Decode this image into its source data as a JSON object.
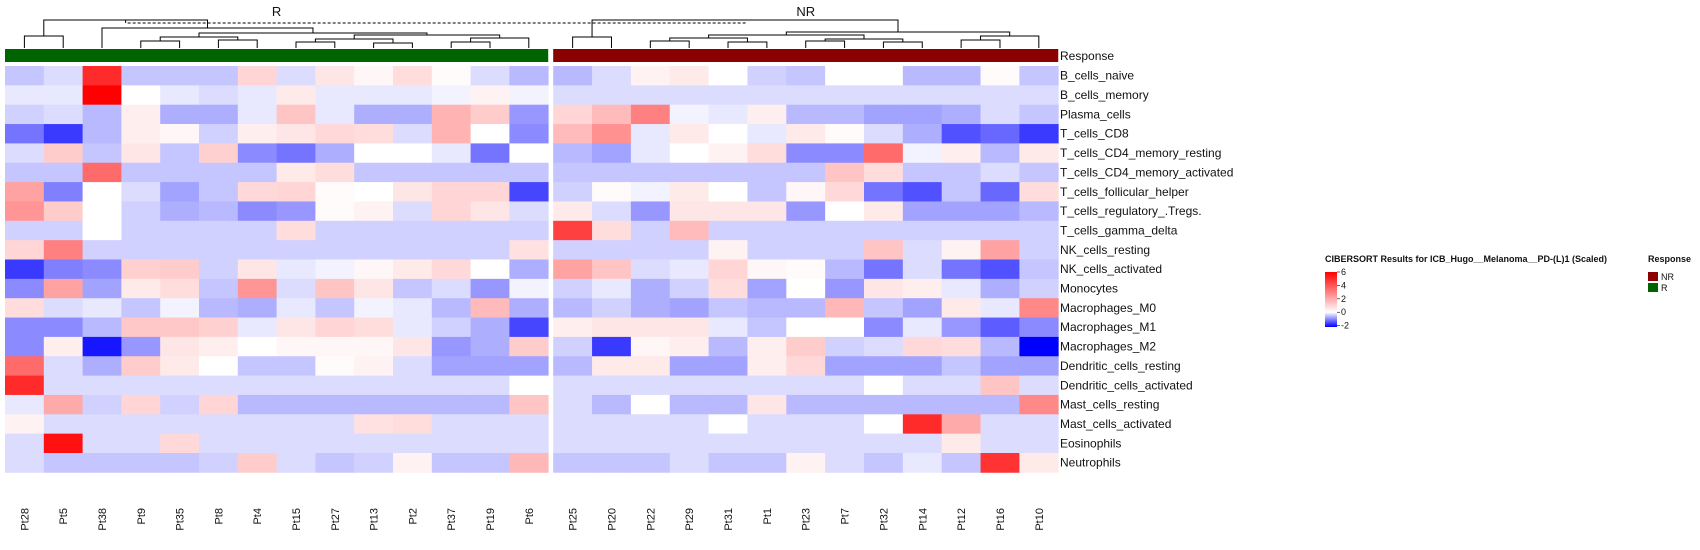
{
  "chart_data": {
    "type": "heatmap",
    "groups": [
      "R",
      "NR"
    ],
    "response_label": "Response",
    "columns": {
      "R": [
        "Pt28",
        "Pt5",
        "Pt38",
        "Pt9",
        "Pt35",
        "Pt8",
        "Pt4",
        "Pt15",
        "Pt27",
        "Pt13",
        "Pt2",
        "Pt37",
        "Pt19",
        "Pt6"
      ],
      "NR": [
        "Pt25",
        "Pt20",
        "Pt22",
        "Pt29",
        "Pt31",
        "Pt1",
        "Pt23",
        "Pt7",
        "Pt32",
        "Pt14",
        "Pt12",
        "Pt16",
        "Pt10"
      ]
    },
    "rows": [
      "B_cells_naive",
      "B_cells_memory",
      "Plasma_cells",
      "T_cells_CD8",
      "T_cells_CD4_memory_resting",
      "T_cells_CD4_memory_activated",
      "T_cells_follicular_helper",
      "T_cells_regulatory_.Tregs.",
      "T_cells_gamma_delta",
      "NK_cells_resting",
      "NK_cells_activated",
      "Monocytes",
      "Macrophages_M0",
      "Macrophages_M1",
      "Macrophages_M2",
      "Dendritic_cells_resting",
      "Dendritic_cells_activated",
      "Mast_cells_resting",
      "Mast_cells_activated",
      "Eosinophils",
      "Neutrophils"
    ],
    "values": [
      [
        -0.5,
        -0.3,
        5.0,
        -0.5,
        -0.5,
        -0.5,
        1.0,
        -0.3,
        0.6,
        0.2,
        0.8,
        0.1,
        -0.3,
        -0.6,
        -0.6,
        -0.3,
        0.3,
        0.5,
        0.0,
        -0.4,
        -0.5,
        0.0,
        0.0,
        -0.6,
        -0.6,
        0.1,
        -0.5
      ],
      [
        -0.2,
        -0.2,
        6.0,
        0.0,
        -0.2,
        -0.3,
        -0.2,
        0.5,
        -0.2,
        -0.2,
        -0.2,
        -0.1,
        0.3,
        -0.1,
        -0.3,
        -0.3,
        -0.3,
        -0.3,
        -0.3,
        -0.3,
        -0.3,
        -0.3,
        -0.3,
        -0.3,
        -0.3,
        -0.3,
        -0.3
      ],
      [
        -0.4,
        -0.3,
        -0.6,
        0.4,
        -0.7,
        -0.7,
        -0.2,
        1.4,
        -0.2,
        -0.7,
        -0.7,
        1.8,
        1.2,
        -0.9,
        1.0,
        1.6,
        3.0,
        -0.1,
        -0.2,
        0.4,
        -0.6,
        -0.6,
        -0.8,
        -0.8,
        -0.7,
        -0.3,
        -0.5
      ],
      [
        -1.2,
        -1.7,
        -0.6,
        0.4,
        0.2,
        -0.4,
        0.4,
        0.6,
        0.9,
        0.8,
        -0.3,
        1.8,
        0.0,
        -1.0,
        1.6,
        2.6,
        -0.2,
        0.5,
        0.0,
        -0.2,
        0.5,
        0.1,
        -0.3,
        -0.7,
        -1.5,
        -1.3,
        -1.7
      ],
      [
        -0.3,
        1.2,
        -0.5,
        0.6,
        -0.5,
        1.1,
        -1.0,
        -1.2,
        -0.7,
        0.0,
        0.0,
        -0.2,
        -1.2,
        0.0,
        -0.6,
        -0.8,
        -0.2,
        0.0,
        0.3,
        0.8,
        -1.0,
        -1.0,
        3.5,
        -0.1,
        0.4,
        -0.6,
        0.5
      ],
      [
        -0.5,
        -0.5,
        3.5,
        -0.5,
        -0.5,
        -0.5,
        -0.5,
        0.5,
        0.8,
        -0.5,
        -0.5,
        -0.5,
        -0.5,
        -0.5,
        -0.5,
        -0.5,
        -0.5,
        -0.5,
        -0.5,
        -0.5,
        -0.5,
        1.4,
        0.8,
        -0.5,
        -0.5,
        -0.3,
        -0.5
      ],
      [
        2.2,
        -1.1,
        0.0,
        -0.3,
        -0.8,
        -0.5,
        0.9,
        1.0,
        0.1,
        0.0,
        0.6,
        1.0,
        1.0,
        -1.6,
        -0.4,
        0.1,
        -0.1,
        0.5,
        0.0,
        -0.5,
        0.2,
        0.9,
        -1.2,
        -1.5,
        -0.5,
        -1.3,
        0.8
      ],
      [
        2.5,
        1.2,
        0.0,
        -0.4,
        -0.7,
        -0.6,
        -1.0,
        -0.9,
        0.1,
        0.3,
        -0.3,
        1.0,
        0.6,
        -0.3,
        0.5,
        -0.3,
        -0.9,
        0.6,
        0.6,
        0.6,
        -0.9,
        0.0,
        0.5,
        -0.8,
        -0.8,
        -0.8,
        -0.6
      ],
      [
        -0.4,
        -0.4,
        0.0,
        -0.4,
        -0.4,
        -0.4,
        -0.4,
        0.8,
        -0.4,
        -0.4,
        -0.4,
        -0.4,
        -0.4,
        -0.4,
        4.5,
        0.8,
        -0.4,
        1.6,
        -0.4,
        -0.4,
        -0.4,
        -0.4,
        -0.4,
        -0.4,
        -0.4,
        -0.4,
        -0.4
      ],
      [
        1.0,
        3.0,
        -0.4,
        -0.4,
        -0.4,
        -0.4,
        -0.4,
        -0.4,
        -0.4,
        -0.4,
        -0.4,
        -0.4,
        -0.4,
        0.7,
        -0.4,
        -0.4,
        -0.4,
        -0.4,
        0.3,
        -0.4,
        -0.4,
        -0.4,
        1.4,
        -0.3,
        0.3,
        2.2,
        -0.4
      ],
      [
        -1.7,
        -1.1,
        -1.0,
        1.1,
        1.2,
        -0.4,
        0.6,
        -0.2,
        -0.1,
        0.2,
        0.5,
        0.9,
        0.0,
        -0.7,
        2.2,
        1.4,
        -0.3,
        -0.2,
        1.0,
        0.2,
        0.1,
        -0.6,
        -1.2,
        -0.3,
        -1.2,
        -1.5,
        -0.5
      ],
      [
        -1.0,
        2.2,
        -0.8,
        0.5,
        0.8,
        -0.5,
        2.5,
        -0.3,
        1.4,
        0.6,
        -0.5,
        -0.3,
        -0.9,
        -0.1,
        -0.4,
        -0.2,
        -0.7,
        -0.4,
        0.8,
        -0.8,
        0.0,
        -0.9,
        0.6,
        0.4,
        -0.2,
        -0.7,
        -0.4
      ],
      [
        0.8,
        -0.3,
        -0.2,
        -0.5,
        -0.1,
        -0.6,
        -0.7,
        -0.2,
        -0.5,
        -0.1,
        -0.2,
        -0.6,
        1.6,
        -0.7,
        -0.6,
        -0.4,
        -0.7,
        -0.8,
        -0.5,
        -0.6,
        -0.6,
        1.7,
        -0.5,
        -0.8,
        0.5,
        -0.2,
        2.8
      ],
      [
        -1.0,
        -1.0,
        -0.6,
        1.3,
        1.3,
        1.1,
        -0.2,
        0.6,
        1.0,
        0.8,
        -0.2,
        -0.4,
        -0.7,
        -1.6,
        0.4,
        0.6,
        0.6,
        0.6,
        -0.2,
        -0.5,
        0.0,
        0.0,
        -1.0,
        -0.2,
        -0.9,
        -1.4,
        -1.0
      ],
      [
        -1.0,
        0.4,
        -2.0,
        -0.9,
        0.6,
        0.4,
        0.0,
        0.2,
        0.2,
        0.2,
        0.6,
        -0.9,
        -0.7,
        1.2,
        -0.4,
        -1.7,
        0.2,
        0.4,
        -0.6,
        0.4,
        1.2,
        -0.4,
        -0.3,
        0.9,
        0.8,
        -0.6,
        -2.2
      ],
      [
        3.5,
        -0.3,
        -0.7,
        1.2,
        0.5,
        0.0,
        -0.5,
        -0.5,
        0.1,
        0.3,
        -0.3,
        -0.8,
        -0.8,
        -0.8,
        -0.6,
        0.5,
        0.5,
        -0.8,
        -0.8,
        0.4,
        0.9,
        -0.8,
        -0.8,
        -0.8,
        -0.5,
        -0.8,
        -0.8
      ],
      [
        5.0,
        -0.3,
        -0.3,
        -0.3,
        -0.3,
        -0.3,
        -0.3,
        -0.3,
        -0.3,
        -0.3,
        -0.3,
        -0.3,
        -0.3,
        0.0,
        -0.3,
        -0.3,
        -0.3,
        -0.3,
        -0.3,
        -0.3,
        -0.3,
        -0.3,
        0.0,
        -0.3,
        -0.3,
        1.4,
        -0.3
      ],
      [
        -0.2,
        2.0,
        -0.4,
        1.0,
        -0.4,
        1.0,
        -0.6,
        -0.6,
        -0.6,
        -0.6,
        -0.6,
        -0.6,
        -0.6,
        1.4,
        -0.3,
        -0.6,
        0.0,
        -0.6,
        -0.6,
        0.6,
        -0.6,
        -0.6,
        -0.6,
        -0.6,
        -0.6,
        -0.6,
        2.8
      ],
      [
        0.3,
        -0.3,
        -0.3,
        -0.3,
        -0.3,
        -0.3,
        -0.3,
        -0.3,
        -0.3,
        0.7,
        0.8,
        -0.3,
        -0.3,
        -0.3,
        -0.3,
        -0.3,
        -0.3,
        -0.3,
        0.0,
        -0.3,
        -0.3,
        -0.3,
        0.0,
        5.0,
        2.0,
        -0.3,
        -0.3
      ],
      [
        -0.3,
        5.6,
        -0.3,
        -0.3,
        0.9,
        -0.3,
        -0.3,
        -0.3,
        -0.3,
        -0.3,
        -0.3,
        -0.3,
        -0.3,
        -0.3,
        -0.3,
        -0.3,
        -0.3,
        -0.3,
        -0.3,
        -0.3,
        -0.3,
        -0.3,
        -0.3,
        -0.3,
        0.5,
        -0.3,
        -0.3
      ],
      [
        -0.3,
        -0.5,
        -0.5,
        -0.5,
        -0.5,
        -0.4,
        1.2,
        -0.3,
        -0.5,
        -0.4,
        0.3,
        -0.5,
        -0.5,
        1.7,
        -0.5,
        -0.5,
        -0.5,
        -0.3,
        -0.5,
        -0.5,
        0.3,
        -0.3,
        -0.5,
        -0.2,
        -0.5,
        4.8,
        0.5
      ]
    ],
    "color_scale": {
      "min": -2.2,
      "max": 6,
      "low": "#0000ff",
      "mid": "#ffffff",
      "high": "#ff0000"
    },
    "legend": {
      "title": "CIBERSORT Results for ICB_Hugo__Melanoma__PD-(L)1 (Scaled)",
      "ticks": [
        6,
        4,
        2,
        0,
        -2
      ]
    },
    "response_legend": {
      "title": "Response",
      "entries": [
        {
          "label": "NR",
          "color": "#8b0000"
        },
        {
          "label": "R",
          "color": "#006400"
        }
      ]
    }
  }
}
